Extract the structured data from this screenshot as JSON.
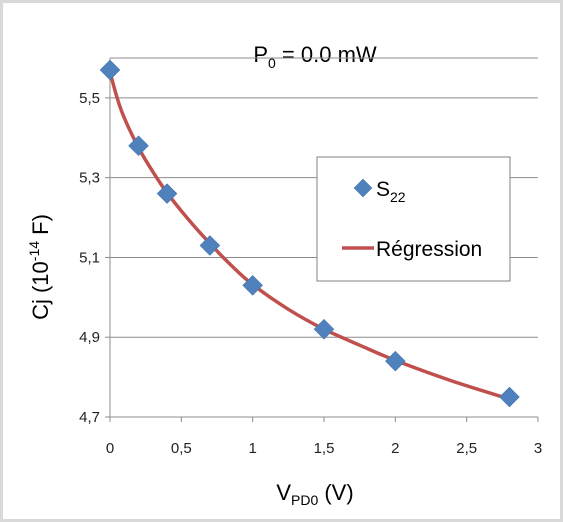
{
  "chart_data": {
    "type": "scatter",
    "title_main": "P",
    "title_sub": "0",
    "title_rest": " = 0.0 mW",
    "xlabel_main": "V",
    "xlabel_sub": "PD0",
    "xlabel_rest": " (V)",
    "ylabel_main": "Cj (10",
    "ylabel_sup": "-14",
    "ylabel_rest": " F)",
    "xlim": [
      0,
      3
    ],
    "ylim": [
      4.7,
      5.6
    ],
    "xticks": [
      "0",
      "0,5",
      "1",
      "1,5",
      "2",
      "2,5",
      "3"
    ],
    "yticks": [
      "4,7",
      "4,9",
      "5,1",
      "5,3",
      "5,5"
    ],
    "grid": true,
    "legend_position": "right",
    "series": [
      {
        "name_main": "S",
        "name_sub": "22",
        "kind": "markers",
        "marker": "diamond",
        "color": "#4F81BD",
        "x": [
          0,
          0.2,
          0.4,
          0.7,
          1.0,
          1.5,
          2.0,
          2.8
        ],
        "y": [
          5.57,
          5.38,
          5.26,
          5.13,
          5.03,
          4.92,
          4.84,
          4.75
        ]
      },
      {
        "name": "Régression",
        "kind": "line",
        "color": "#C0504D",
        "x": [
          0,
          0.05,
          0.1,
          0.2,
          0.3,
          0.4,
          0.55,
          0.7,
          0.85,
          1.0,
          1.25,
          1.5,
          1.75,
          2.0,
          2.4,
          2.8
        ],
        "y": [
          5.565,
          5.5,
          5.45,
          5.375,
          5.315,
          5.262,
          5.195,
          5.135,
          5.08,
          5.032,
          4.97,
          4.92,
          4.88,
          4.842,
          4.79,
          4.745
        ]
      }
    ]
  }
}
